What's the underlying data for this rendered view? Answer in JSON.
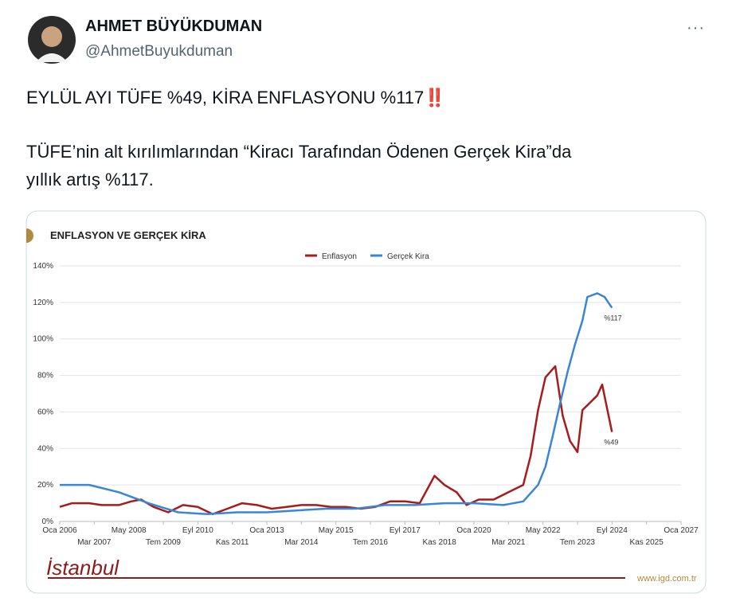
{
  "tweet": {
    "author": "AHMET BÜYÜKDUMAN",
    "handle": "@AhmetBuyukduman",
    "menu": "···",
    "line1": "EYLÜL AYI TÜFE %49, KİRA ENFLASYONU %117‼️",
    "line2": "TÜFE’nin alt kırılımlarından “Kiracı Tarafından Ödenen Gerçek Kira”da",
    "line3": "yıllık artış %117.",
    "logo": "İstanbul",
    "site": "www.igd.com.tr"
  },
  "chart_data": {
    "type": "line",
    "title": "ENFLASYON VE GERÇEK KİRA",
    "xlim": [
      "2006-01",
      "2027-01"
    ],
    "xticks": [
      {
        "value": "2006-01",
        "label": "Oca 2006"
      },
      {
        "value": "2007-03",
        "label": "Mar 2007"
      },
      {
        "value": "2008-05",
        "label": "May 2008"
      },
      {
        "value": "2009-07",
        "label": "Tem 2009"
      },
      {
        "value": "2010-09",
        "label": "Eyl 2010"
      },
      {
        "value": "2011-11",
        "label": "Kas 2011"
      },
      {
        "value": "2013-01",
        "label": "Oca 2013"
      },
      {
        "value": "2014-03",
        "label": "Mar 2014"
      },
      {
        "value": "2015-05",
        "label": "May 2015"
      },
      {
        "value": "2016-07",
        "label": "Tem 2016"
      },
      {
        "value": "2017-09",
        "label": "Eyl 2017"
      },
      {
        "value": "2018-11",
        "label": "Kas 2018"
      },
      {
        "value": "2020-01",
        "label": "Oca 2020"
      },
      {
        "value": "2021-03",
        "label": "Mar 2021"
      },
      {
        "value": "2022-05",
        "label": "May 2022"
      },
      {
        "value": "2023-07",
        "label": "Tem 2023"
      },
      {
        "value": "2024-09",
        "label": "Eyl 2024"
      },
      {
        "value": "2025-11",
        "label": "Kas 2025"
      },
      {
        "value": "2027-01",
        "label": "Oca 2027"
      }
    ],
    "ylim": [
      0,
      140
    ],
    "yticks": [
      {
        "value": 0,
        "label": "0%"
      },
      {
        "value": 20,
        "label": "20%"
      },
      {
        "value": 40,
        "label": "40%"
      },
      {
        "value": 60,
        "label": "60%"
      },
      {
        "value": 80,
        "label": "80%"
      },
      {
        "value": 100,
        "label": "100%"
      },
      {
        "value": 120,
        "label": "120%"
      },
      {
        "value": 140,
        "label": "140%"
      }
    ],
    "grid": true,
    "series": [
      {
        "name": "Enflasyon",
        "color": "#a61c1c",
        "x": [
          "2006-01",
          "2006-06",
          "2007-01",
          "2007-06",
          "2008-01",
          "2008-06",
          "2008-10",
          "2009-03",
          "2009-09",
          "2010-03",
          "2010-09",
          "2011-03",
          "2011-09",
          "2012-03",
          "2012-09",
          "2013-03",
          "2013-09",
          "2014-03",
          "2014-09",
          "2015-03",
          "2015-09",
          "2016-03",
          "2016-09",
          "2017-03",
          "2017-09",
          "2018-03",
          "2018-09",
          "2019-01",
          "2019-06",
          "2019-10",
          "2020-03",
          "2020-09",
          "2021-03",
          "2021-09",
          "2021-12",
          "2022-03",
          "2022-06",
          "2022-10",
          "2023-01",
          "2023-04",
          "2023-07",
          "2023-09",
          "2023-12",
          "2024-03",
          "2024-05",
          "2024-07",
          "2024-09"
        ],
        "values": [
          8,
          10,
          10,
          9,
          9,
          11,
          12,
          8,
          5,
          9,
          8,
          4,
          7,
          10,
          9,
          7,
          8,
          9,
          9,
          8,
          8,
          7,
          8,
          11,
          11,
          10,
          25,
          20,
          16,
          9,
          12,
          12,
          16,
          20,
          36,
          61,
          79,
          85,
          58,
          44,
          38,
          61,
          65,
          69,
          75,
          62,
          49
        ]
      },
      {
        "name": "Gerçek Kira",
        "color": "#3a86d6",
        "x": [
          "2006-01",
          "2007-01",
          "2008-01",
          "2009-01",
          "2010-01",
          "2011-01",
          "2012-01",
          "2013-01",
          "2014-01",
          "2015-01",
          "2016-01",
          "2017-01",
          "2018-01",
          "2019-01",
          "2020-01",
          "2021-01",
          "2021-09",
          "2022-03",
          "2022-06",
          "2022-09",
          "2022-12",
          "2023-03",
          "2023-06",
          "2023-09",
          "2023-11",
          "2024-03",
          "2024-06",
          "2024-09"
        ],
        "values": [
          20,
          20,
          16,
          10,
          5,
          4,
          5,
          5,
          6,
          7,
          7,
          9,
          9,
          10,
          10,
          9,
          11,
          20,
          30,
          47,
          65,
          82,
          97,
          110,
          123,
          125,
          123,
          117
        ]
      }
    ],
    "annotations": [
      {
        "text": "%117",
        "series": 1
      },
      {
        "text": "%49",
        "series": 0
      }
    ],
    "legend": "top"
  }
}
